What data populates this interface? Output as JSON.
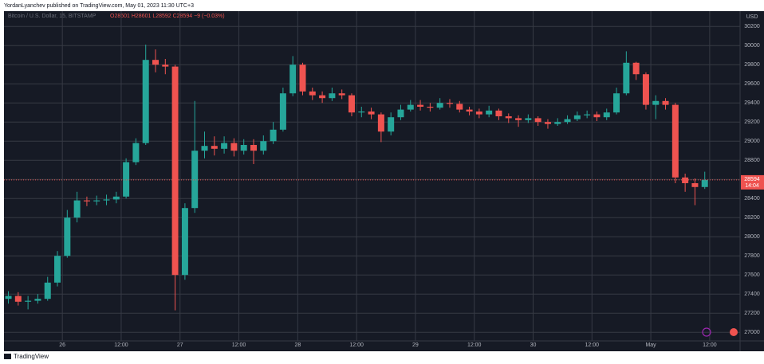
{
  "header": {
    "publisher_line": "YordanLyanchev published on TradingView.com, May 01, 2023 11:30 UTC+3"
  },
  "chart_data": {
    "type": "candlestick",
    "symbol": "Bitcoin / U.S. Dollar, 15, BITSTAMP",
    "ohlc_legend": "O28601 H28601 L28592 C28594 −9 (−0.03%)",
    "y_axis_unit": "USD",
    "last_price": 28594,
    "countdown": "14:04",
    "up_color": "#26a69a",
    "down_color": "#ef5350",
    "x": [
      -11,
      -9,
      -7,
      -5,
      -3,
      -1,
      1,
      3,
      5,
      7,
      9,
      11,
      13,
      15,
      17,
      19,
      21,
      23,
      25,
      27,
      29,
      31,
      33,
      35,
      37,
      39,
      41,
      43,
      45,
      47,
      49,
      51,
      53,
      55,
      57,
      59,
      61,
      63,
      65,
      67,
      69,
      71,
      73,
      75,
      77,
      79,
      81,
      83,
      85,
      87,
      89,
      91,
      93,
      95,
      97,
      99,
      101,
      103,
      105,
      107,
      109,
      111,
      113,
      115,
      117,
      119,
      121,
      123,
      125,
      127,
      129,
      131
    ],
    "open": [
      27350,
      27380,
      27320,
      27330,
      27350,
      27520,
      27800,
      28200,
      28380,
      28370,
      28380,
      28390,
      28420,
      28780,
      28980,
      29850,
      29800,
      29780,
      27600,
      28300,
      28900,
      28950,
      28920,
      28980,
      28900,
      28960,
      28900,
      29000,
      29120,
      29500,
      29800,
      29520,
      29480,
      29450,
      29500,
      29480,
      29300,
      29310,
      29280,
      29100,
      29250,
      29330,
      29380,
      29360,
      29350,
      29400,
      29390,
      29330,
      29310,
      29280,
      29320,
      29260,
      29240,
      29220,
      29240,
      29200,
      29180,
      29200,
      29230,
      29270,
      29280,
      29250,
      29300,
      29500,
      29820,
      29700,
      29380,
      29420,
      29380,
      28620,
      28560,
      28520
    ],
    "high": [
      27430,
      27420,
      27380,
      27400,
      27580,
      27850,
      28280,
      28470,
      28420,
      28430,
      28440,
      28470,
      28820,
      29030,
      30010,
      29960,
      29860,
      29800,
      28350,
      29420,
      29100,
      29050,
      29050,
      29030,
      29020,
      29020,
      29060,
      29200,
      29560,
      29890,
      29820,
      29560,
      29520,
      29560,
      29540,
      29500,
      29360,
      29350,
      29300,
      29300,
      29380,
      29430,
      29430,
      29400,
      29450,
      29440,
      29420,
      29360,
      29340,
      29370,
      29340,
      29290,
      29270,
      29280,
      29260,
      29230,
      29240,
      29270,
      29310,
      29320,
      29310,
      29340,
      29560,
      29940,
      29830,
      29720,
      29480,
      29450,
      29400,
      28660,
      28610,
      28680
    ],
    "low": [
      27300,
      27280,
      27240,
      27300,
      27330,
      27480,
      27780,
      28150,
      28320,
      28330,
      28330,
      28350,
      28400,
      28750,
      28960,
      29720,
      29700,
      27230,
      27550,
      28250,
      28820,
      28850,
      28870,
      28840,
      28860,
      28760,
      28860,
      28970,
      29100,
      29470,
      29480,
      29430,
      29400,
      29420,
      29440,
      29260,
      29250,
      29230,
      28990,
      29060,
      29220,
      29310,
      29320,
      29310,
      29330,
      29350,
      29300,
      29270,
      29240,
      29250,
      29220,
      29190,
      29150,
      29190,
      29160,
      29130,
      29160,
      29180,
      29210,
      29240,
      29210,
      29220,
      29280,
      29480,
      29640,
      29330,
      29230,
      29330,
      28560,
      28470,
      28330,
      28500
    ],
    "close": [
      27380,
      27320,
      27330,
      27350,
      27520,
      27800,
      28200,
      28380,
      28370,
      28380,
      28390,
      28420,
      28780,
      28980,
      29850,
      29800,
      29780,
      27600,
      28300,
      28900,
      28950,
      28920,
      28980,
      28900,
      28960,
      28900,
      29000,
      29120,
      29500,
      29800,
      29520,
      29480,
      29450,
      29500,
      29480,
      29300,
      29310,
      29280,
      29100,
      29250,
      29330,
      29380,
      29360,
      29350,
      29400,
      29390,
      29330,
      29310,
      29280,
      29320,
      29260,
      29240,
      29220,
      29240,
      29200,
      29180,
      29200,
      29230,
      29270,
      29280,
      29250,
      29300,
      29500,
      29820,
      29700,
      29380,
      29420,
      29380,
      28620,
      28560,
      28520,
      28594
    ],
    "xlim": [
      -11.9,
      138.2
    ],
    "ylim": [
      26910,
      30360
    ],
    "xticks": [
      {
        "value": 0,
        "label": "26"
      },
      {
        "value": 12,
        "label": "12:00"
      },
      {
        "value": 24,
        "label": "27"
      },
      {
        "value": 36,
        "label": "12:00"
      },
      {
        "value": 48,
        "label": "28"
      },
      {
        "value": 60,
        "label": "12:00"
      },
      {
        "value": 72,
        "label": "29"
      },
      {
        "value": 84,
        "label": "12:00"
      },
      {
        "value": 96,
        "label": "30"
      },
      {
        "value": 108,
        "label": "12:00"
      },
      {
        "value": 120,
        "label": "May"
      },
      {
        "value": 132,
        "label": "12:00"
      }
    ],
    "yticks": [
      27000,
      27200,
      27400,
      27600,
      27800,
      28000,
      28200,
      28400,
      28600,
      28800,
      29000,
      29200,
      29400,
      29600,
      29800,
      30000,
      30200
    ],
    "grid": true
  },
  "footer": {
    "brand": "TradingView"
  }
}
